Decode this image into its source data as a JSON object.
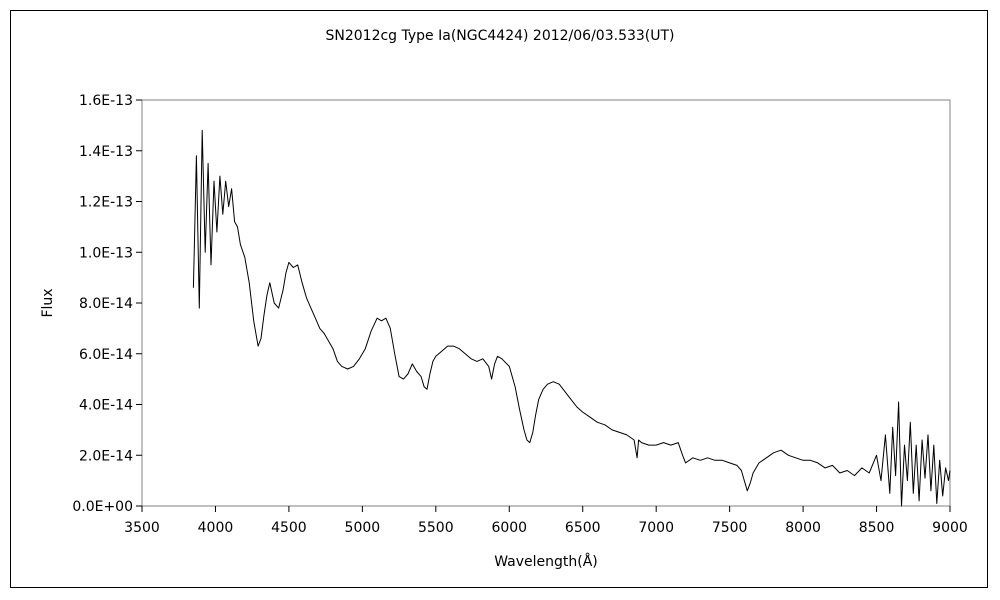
{
  "chart_data": {
    "type": "line",
    "title": "SN2012cg  Type Ia(NGC4424)    2012/06/03.533(UT)",
    "xlabel": "Wavelength(Å)",
    "ylabel": "Flux",
    "xlim": [
      3500,
      9000
    ],
    "ylim": [
      0,
      1.6e-13
    ],
    "x_ticks": [
      3500,
      4000,
      4500,
      5000,
      5500,
      6000,
      6500,
      7000,
      7500,
      8000,
      8500,
      9000
    ],
    "x_tick_labels": [
      "3500",
      "4000",
      "4500",
      "5000",
      "5500",
      "6000",
      "6500",
      "7000",
      "7500",
      "8000",
      "8500",
      "9000"
    ],
    "y_ticks": [
      0,
      2e-14,
      4e-14,
      6e-14,
      8e-14,
      1e-13,
      1.2e-13,
      1.4e-13,
      1.6e-13
    ],
    "y_tick_labels": [
      "0.0E+00",
      "2.0E-14",
      "4.0E-14",
      "6.0E-14",
      "8.0E-14",
      "1.0E-13",
      "1.2E-13",
      "1.4E-13",
      "1.6E-13"
    ],
    "grid": false,
    "legend": "none",
    "line_color": "#000000",
    "series": [
      {
        "x": [
          3850,
          3870,
          3890,
          3910,
          3930,
          3950,
          3970,
          3990,
          4010,
          4030,
          4050,
          4070,
          4090,
          4110,
          4130,
          4150,
          4170,
          4200,
          4230,
          4260,
          4290,
          4310,
          4330,
          4350,
          4370,
          4400,
          4430,
          4460,
          4480,
          4500,
          4530,
          4560,
          4590,
          4620,
          4650,
          4680,
          4710,
          4740,
          4770,
          4800,
          4830,
          4860,
          4900,
          4940,
          4980,
          5020,
          5060,
          5100,
          5130,
          5160,
          5190,
          5220,
          5250,
          5280,
          5310,
          5340,
          5370,
          5400,
          5420,
          5440,
          5460,
          5480,
          5500,
          5540,
          5580,
          5620,
          5660,
          5700,
          5740,
          5780,
          5820,
          5860,
          5880,
          5900,
          5920,
          5950,
          6000,
          6040,
          6070,
          6100,
          6120,
          6140,
          6160,
          6180,
          6200,
          6230,
          6260,
          6300,
          6340,
          6380,
          6420,
          6460,
          6500,
          6550,
          6600,
          6650,
          6700,
          6750,
          6800,
          6850,
          6870,
          6880,
          6900,
          6950,
          7000,
          7050,
          7100,
          7150,
          7180,
          7200,
          7250,
          7300,
          7350,
          7400,
          7450,
          7500,
          7550,
          7580,
          7600,
          7620,
          7640,
          7660,
          7700,
          7750,
          7800,
          7850,
          7900,
          7950,
          8000,
          8050,
          8100,
          8150,
          8200,
          8250,
          8300,
          8350,
          8400,
          8450,
          8500,
          8530,
          8560,
          8590,
          8610,
          8630,
          8650,
          8670,
          8690,
          8710,
          8730,
          8750,
          8770,
          8790,
          8810,
          8830,
          8850,
          8870,
          8890,
          8910,
          8930,
          8950,
          8970,
          8990,
          9000
        ],
        "y": [
          8.6e-14,
          1.38e-13,
          7.8e-14,
          1.48e-13,
          1e-13,
          1.35e-13,
          9.5e-14,
          1.28e-13,
          1.08e-13,
          1.3e-13,
          1.15e-13,
          1.28e-13,
          1.18e-13,
          1.25e-13,
          1.12e-13,
          1.1e-13,
          1.03e-13,
          9.8e-14,
          8.8e-14,
          7.3e-14,
          6.3e-14,
          6.6e-14,
          7.5e-14,
          8.3e-14,
          8.8e-14,
          8e-14,
          7.8e-14,
          8.5e-14,
          9.2e-14,
          9.6e-14,
          9.4e-14,
          9.5e-14,
          8.8e-14,
          8.2e-14,
          7.8e-14,
          7.4e-14,
          7e-14,
          6.8e-14,
          6.5e-14,
          6.2e-14,
          5.7e-14,
          5.5e-14,
          5.4e-14,
          5.5e-14,
          5.8e-14,
          6.2e-14,
          6.9e-14,
          7.4e-14,
          7.3e-14,
          7.4e-14,
          7e-14,
          6e-14,
          5.1e-14,
          5e-14,
          5.2e-14,
          5.6e-14,
          5.3e-14,
          5.1e-14,
          4.7e-14,
          4.6e-14,
          5.2e-14,
          5.7e-14,
          5.9e-14,
          6.1e-14,
          6.3e-14,
          6.3e-14,
          6.2e-14,
          6e-14,
          5.8e-14,
          5.7e-14,
          5.8e-14,
          5.5e-14,
          5e-14,
          5.6e-14,
          5.9e-14,
          5.8e-14,
          5.5e-14,
          4.7e-14,
          3.8e-14,
          3e-14,
          2.6e-14,
          2.5e-14,
          2.9e-14,
          3.6e-14,
          4.2e-14,
          4.6e-14,
          4.8e-14,
          4.9e-14,
          4.8e-14,
          4.5e-14,
          4.2e-14,
          3.9e-14,
          3.7e-14,
          3.5e-14,
          3.3e-14,
          3.2e-14,
          3e-14,
          2.9e-14,
          2.8e-14,
          2.6e-14,
          1.9e-14,
          2.6e-14,
          2.5e-14,
          2.4e-14,
          2.4e-14,
          2.5e-14,
          2.4e-14,
          2.5e-14,
          2e-14,
          1.7e-14,
          1.9e-14,
          1.8e-14,
          1.9e-14,
          1.8e-14,
          1.8e-14,
          1.7e-14,
          1.6e-14,
          1.4e-14,
          1e-14,
          6e-15,
          9e-15,
          1.3e-14,
          1.7e-14,
          1.9e-14,
          2.1e-14,
          2.2e-14,
          2e-14,
          1.9e-14,
          1.8e-14,
          1.8e-14,
          1.7e-14,
          1.5e-14,
          1.6e-14,
          1.3e-14,
          1.4e-14,
          1.2e-14,
          1.5e-14,
          1.3e-14,
          2e-14,
          1e-14,
          2.8e-14,
          5e-15,
          3.1e-14,
          1.2e-14,
          4.1e-14,
          0.0,
          2.4e-14,
          1e-14,
          3.3e-14,
          5e-15,
          2.4e-14,
          2e-15,
          2.6e-14,
          1.1e-14,
          2.8e-14,
          6e-15,
          2.4e-14,
          1e-15,
          1.8e-14,
          4e-15,
          1.5e-14,
          1e-14,
          1.4e-14
        ]
      }
    ]
  }
}
